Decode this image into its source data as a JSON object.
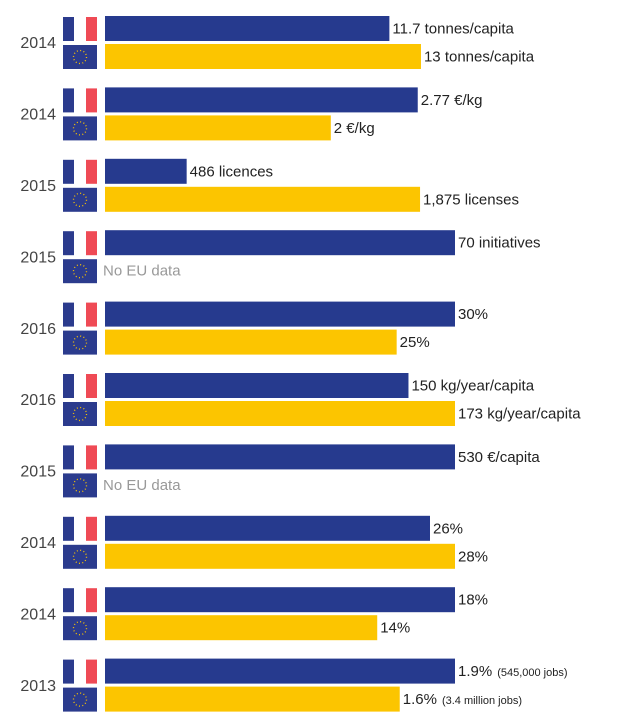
{
  "chart_data": {
    "type": "paired-bar",
    "colors": {
      "fr": "#263a8e",
      "eu": "#fcc500",
      "note": "#999999"
    },
    "rows": [
      {
        "year": "2014",
        "xlim": [
          0,
          14.4
        ],
        "values": [
          11.7,
          13
        ],
        "value_labels": [
          "11.7 tonnes/capita",
          "13 tonnes/capita"
        ]
      },
      {
        "year": "2014",
        "xlim": [
          0,
          3.1
        ],
        "values": [
          2.77,
          2
        ],
        "value_labels": [
          "2.77 €/kg",
          "2 €/kg"
        ]
      },
      {
        "year": "2015",
        "xlim": [
          0,
          2083
        ],
        "values": [
          486,
          1875
        ],
        "value_labels": [
          "486 licences",
          "1,875 licenses"
        ]
      },
      {
        "year": "2015",
        "xlim": [
          0,
          70
        ],
        "values": [
          70,
          null
        ],
        "value_labels": [
          "70 initiatives",
          null
        ],
        "note": "No EU data"
      },
      {
        "year": "2016",
        "xlim": [
          0,
          30
        ],
        "values": [
          30,
          25
        ],
        "value_labels": [
          "30%",
          "25%"
        ]
      },
      {
        "year": "2016",
        "xlim": [
          0,
          173
        ],
        "values": [
          150,
          173
        ],
        "value_labels": [
          "150 kg/year/capita",
          "173 kg/year/capita"
        ]
      },
      {
        "year": "2015",
        "xlim": [
          0,
          530
        ],
        "values": [
          530,
          null
        ],
        "value_labels": [
          "530 €/capita",
          null
        ],
        "note": "No EU data"
      },
      {
        "year": "2014",
        "xlim": [
          0,
          28
        ],
        "values": [
          26,
          28
        ],
        "value_labels": [
          "26%",
          "28%"
        ]
      },
      {
        "year": "2014",
        "xlim": [
          0,
          18
        ],
        "values": [
          18,
          14
        ],
        "value_labels": [
          "18%",
          "14%"
        ]
      },
      {
        "year": "2013",
        "xlim": [
          0,
          1.9
        ],
        "values": [
          1.9,
          1.6
        ],
        "value_labels": [
          "1.9%",
          "1.6%"
        ],
        "notes": [
          "(545,000 jobs)",
          "(3.4 million jobs)"
        ]
      }
    ]
  }
}
